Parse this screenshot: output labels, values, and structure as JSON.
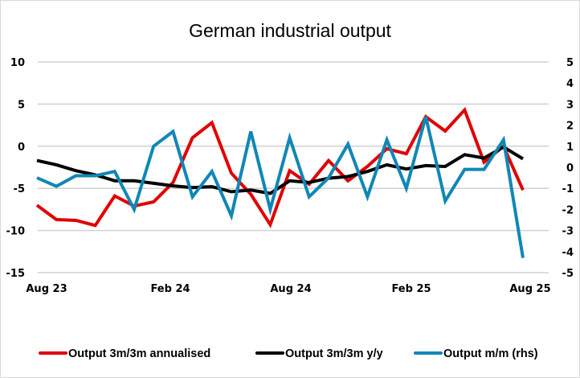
{
  "chart_data": {
    "type": "line",
    "title": "German industrial output",
    "xlabel": "",
    "ylabel": "",
    "y2label": "",
    "grid": true,
    "legend_position": "bottom",
    "x": [
      "Jul 23",
      "Aug 23",
      "Sep 23",
      "Oct 23",
      "Nov 23",
      "Dec 23",
      "Jan 24",
      "Feb 24",
      "Mar 24",
      "Apr 24",
      "May 24",
      "Jun 24",
      "Jul 24",
      "Aug 24",
      "Sep 24",
      "Oct 24",
      "Nov 24",
      "Dec 24",
      "Jan 25",
      "Feb 25",
      "Mar 25",
      "Apr 25",
      "May 25",
      "Jun 25",
      "Jul 25",
      "Aug 25"
    ],
    "x_tick_labels": [
      "Aug 23",
      "Feb 24",
      "Aug 24",
      "Feb 25",
      "Aug 25"
    ],
    "x_tick_indices": [
      1,
      7,
      13,
      19,
      25
    ],
    "ylim": [
      -15,
      10
    ],
    "y_ticks": [
      10,
      5,
      0,
      -5,
      -10,
      -15
    ],
    "y2lim": [
      -5,
      5
    ],
    "y2_ticks": [
      5,
      4,
      3,
      2,
      1,
      0,
      -1,
      -2,
      -3,
      -4,
      -5
    ],
    "series": [
      {
        "name": "Output 3m/3m annualised",
        "axis": "left",
        "color": "#e00000",
        "values": [
          -7.0,
          -8.7,
          -8.8,
          -9.4,
          -5.9,
          -7.1,
          -6.6,
          -4.3,
          1.0,
          2.8,
          -3.2,
          -5.7,
          -9.3,
          -2.9,
          -4.5,
          -1.7,
          -4.1,
          -2.4,
          -0.3,
          -0.9,
          3.5,
          1.8,
          4.3,
          -1.9,
          0.0,
          -5.2
        ]
      },
      {
        "name": "Output 3m/3m y/y",
        "axis": "left",
        "color": "#000000",
        "values": [
          -1.7,
          -2.2,
          -2.9,
          -3.4,
          -4.1,
          -4.1,
          -4.4,
          -4.7,
          -4.9,
          -4.8,
          -5.4,
          -5.2,
          -5.6,
          -4.1,
          -4.3,
          -3.8,
          -3.6,
          -3.0,
          -2.2,
          -2.7,
          -2.3,
          -2.4,
          -1.0,
          -1.4,
          -0.1,
          -1.5
        ]
      },
      {
        "name": "Output m/m (rhs)",
        "axis": "right",
        "color": "#1087b5",
        "values": [
          -0.5,
          -0.9,
          -0.4,
          -0.4,
          -0.2,
          -2.0,
          1.0,
          1.7,
          -1.4,
          -0.2,
          -2.3,
          1.7,
          -2.0,
          1.4,
          -1.4,
          -0.5,
          1.1,
          -1.4,
          1.3,
          -1.0,
          2.4,
          -1.6,
          -0.1,
          -0.1,
          1.3,
          -4.3
        ]
      }
    ]
  }
}
